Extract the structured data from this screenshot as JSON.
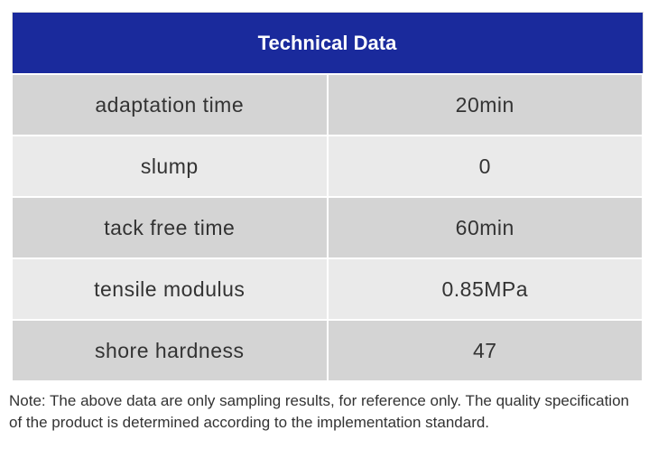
{
  "table": {
    "title": "Technical Data",
    "rows": [
      {
        "property": "adaptation time",
        "value": "20min"
      },
      {
        "property": "slump",
        "value": "0"
      },
      {
        "property": "tack free time",
        "value": "60min"
      },
      {
        "property": "tensile modulus",
        "value": "0.85MPa"
      },
      {
        "property": "shore hardness",
        "value": "47"
      }
    ]
  },
  "note": "Note: The above data are only sampling results, for reference only. The quality specification of the product is determined according to the implementation standard.",
  "colors": {
    "header_bg": "#1a2a9c",
    "header_text": "#ffffff",
    "row_dark": "#d4d4d4",
    "row_light": "#eaeaea"
  }
}
